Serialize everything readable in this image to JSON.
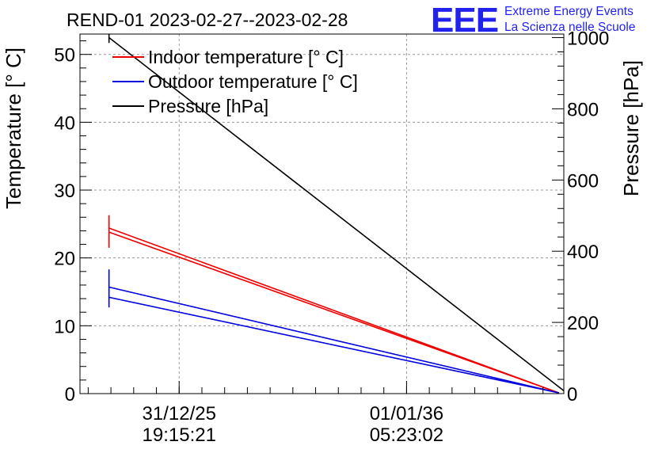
{
  "chart_data": {
    "type": "line",
    "title": "REND-01 2023-02-27--2023-02-28",
    "logo": {
      "mark": "EEE",
      "line1": "Extreme Energy Events",
      "line2": "La Scienza nelle Scuole"
    },
    "ylabel": "Temperature [° C]",
    "ylabel_right": "Pressure [hPa]",
    "ylim": [
      0,
      53
    ],
    "ylim_right": [
      0,
      1010
    ],
    "yticks": [
      0,
      10,
      20,
      30,
      40,
      50
    ],
    "yticks_right": [
      0,
      200,
      400,
      600,
      800,
      1000
    ],
    "xlim": [
      0,
      100
    ],
    "xticks": [
      {
        "value": 20.5,
        "date": "31/12/25",
        "time": "19:15:21"
      },
      {
        "value": 67.5,
        "date": "01/01/36",
        "time": "05:23:02"
      }
    ],
    "grid": true,
    "legend_position": "top-left",
    "legend": [
      {
        "label": "Indoor temperature [° C]",
        "color": "#ee0000"
      },
      {
        "label": "Outdoor temperature [° C]",
        "color": "#0000dd"
      },
      {
        "label": "Pressure [hPa]",
        "color": "#000000"
      }
    ],
    "series": [
      {
        "name": "Indoor temperature A",
        "axis": "left",
        "color": "#ee0000",
        "x": [
          6,
          99
        ],
        "y": [
          24.4,
          0.1
        ]
      },
      {
        "name": "Indoor temperature B",
        "axis": "left",
        "color": "#ee0000",
        "x": [
          6,
          99
        ],
        "y": [
          23.8,
          0.1
        ]
      },
      {
        "name": "Outdoor temperature A",
        "axis": "left",
        "color": "#0000dd",
        "x": [
          6,
          99
        ],
        "y": [
          15.7,
          0.1
        ]
      },
      {
        "name": "Outdoor temperature B",
        "axis": "left",
        "color": "#0000dd",
        "x": [
          6,
          99
        ],
        "y": [
          14.2,
          0.1
        ]
      },
      {
        "name": "Pressure",
        "axis": "right",
        "color": "#000000",
        "x": [
          6,
          100
        ],
        "y": [
          1000,
          8
        ]
      }
    ],
    "error_bars": [
      {
        "series": "Indoor temperature",
        "axis": "left",
        "color": "#ee0000",
        "x": 6,
        "low": 21.5,
        "high": 26.3
      },
      {
        "series": "Outdoor temperature",
        "axis": "left",
        "color": "#0000dd",
        "x": 6,
        "low": 12.7,
        "high": 18.3
      },
      {
        "series": "Pressure",
        "axis": "right",
        "color": "#000000",
        "x": 6,
        "low": 985,
        "high": 1010
      }
    ]
  }
}
